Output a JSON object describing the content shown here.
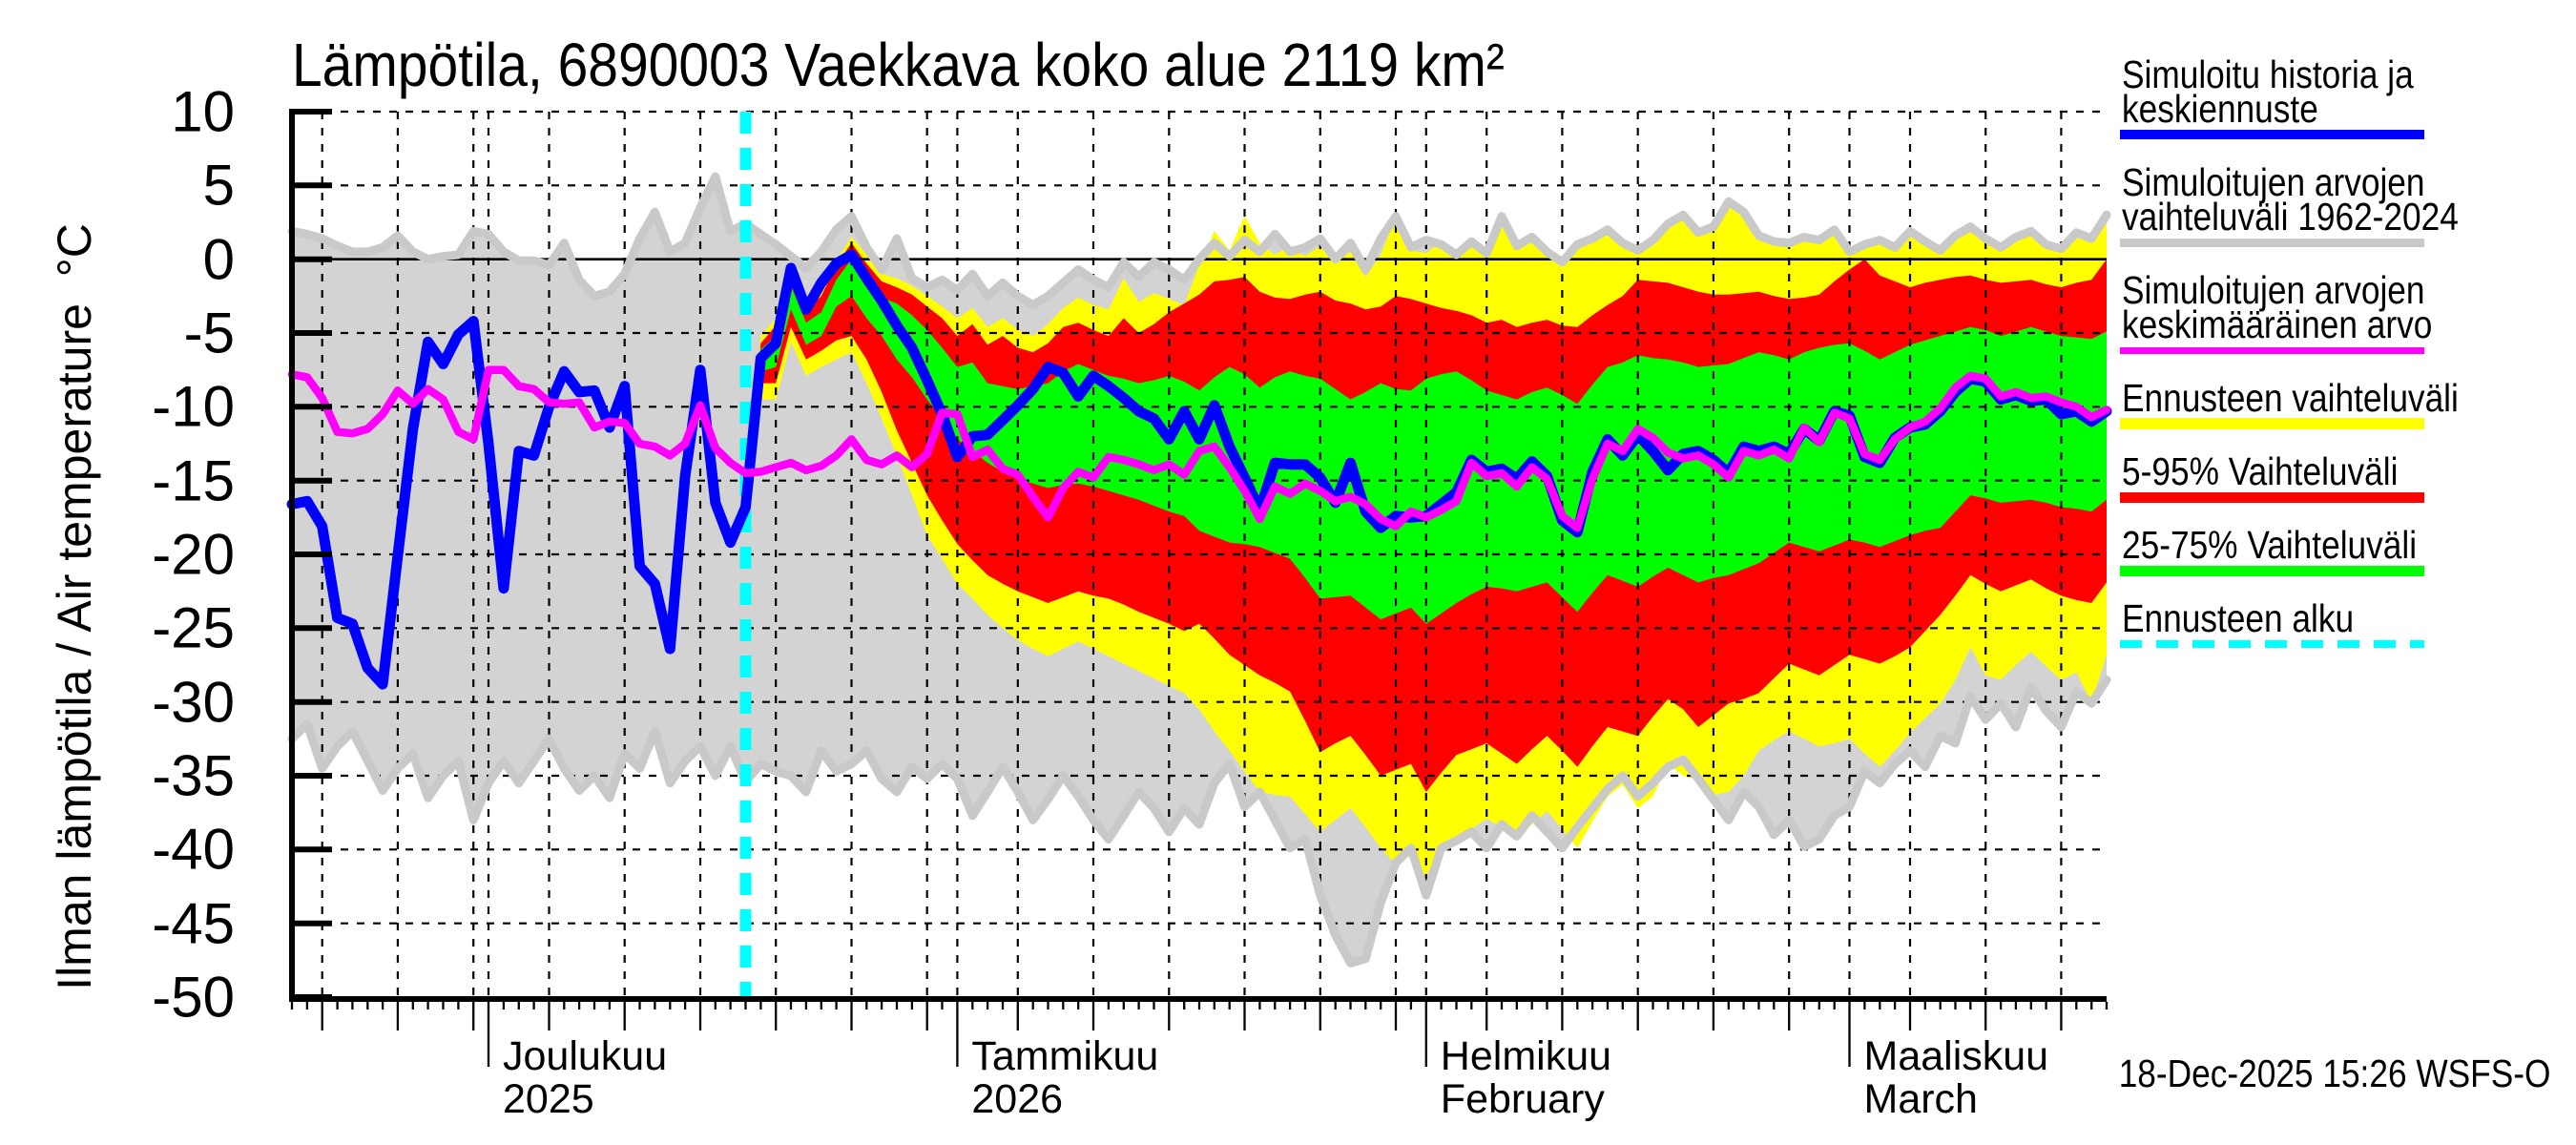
{
  "title": "Lämpötila, 6890003 Vaekkava koko alue 2119 km²",
  "stamp": "18-Dec-2025 15:26 WSFS-O",
  "y_axis": {
    "rotated_label": "Ilman lämpötila / Air temperature  °C",
    "unit": "°C",
    "ticks": [
      10,
      5,
      0,
      -5,
      -10,
      -15,
      -20,
      -25,
      -30,
      -35,
      -40,
      -45,
      -50
    ]
  },
  "x_axis": {
    "months": [
      {
        "name": "Joulukuu",
        "sub": "2025",
        "start_day": 13
      },
      {
        "name": "Tammikuu",
        "sub": "2026",
        "start_day": 44
      },
      {
        "name": "Helmikuu",
        "sub": "February",
        "start_day": 75
      },
      {
        "name": "Maaliskuu",
        "sub": "March",
        "start_day": 103
      }
    ]
  },
  "legend": {
    "items": [
      {
        "lines": [
          "Simuloitu historia ja",
          "keskiennuste"
        ],
        "style": "line",
        "color": "#0000ff",
        "thickness": 10
      },
      {
        "lines": [
          "Simuloitujen arvojen",
          "vaihteluväli 1962-2024"
        ],
        "style": "line",
        "color": "#c9c9c9",
        "thickness": 9
      },
      {
        "lines": [
          "Simuloitujen arvojen",
          "keskimääräinen arvo"
        ],
        "style": "line",
        "color": "#ff00ff",
        "thickness": 7
      },
      {
        "lines": [
          "Ennusteen vaihteluväli"
        ],
        "style": "band",
        "color": "#ffff00",
        "thickness": 12
      },
      {
        "lines": [
          "5-95% Vaihteluväli"
        ],
        "style": "band",
        "color": "#ff0000",
        "thickness": 11
      },
      {
        "lines": [
          "25-75% Vaihteluväli"
        ],
        "style": "band",
        "color": "#00ff00",
        "thickness": 11
      },
      {
        "lines": [
          "Ennusteen alku"
        ],
        "style": "dashed",
        "color": "#00ffff",
        "thickness": 8
      }
    ]
  },
  "colors": {
    "history_line": "#0000ff",
    "sim_range_fill": "#d3d3d3",
    "sim_range_line": "#c9c9c9",
    "sim_mean_line": "#ff00ff",
    "forecast_range": "#ffff00",
    "range_5_95": "#ff0000",
    "range_25_75": "#00ff00",
    "forecast_start": "#00ffff",
    "grid": "#000000"
  },
  "chart_data": {
    "type": "area",
    "description": "Air temperature simulated history and ensemble forecast, daily values",
    "x_start": "18-Nov-2025",
    "x_end": "18-Mar-2026",
    "days": 121,
    "forecast_start_day": 30,
    "month_layout": {
      "first_dom": 18,
      "month_lengths": [
        30,
        31,
        31,
        28,
        31
      ]
    },
    "ylim": [
      -50,
      10
    ],
    "series": {
      "sim_range_max": [
        1.9,
        1.7,
        1.4,
        0.9,
        0.5,
        0.5,
        0.8,
        1.6,
        0.5,
        0.0,
        0.2,
        0.3,
        1.9,
        1.7,
        0.5,
        -0.1,
        -0.1,
        -0.4,
        1.1,
        -1.4,
        -2.5,
        -2.2,
        -1.0,
        1.4,
        3.2,
        0.5,
        1.1,
        3.5,
        5.6,
        1.9,
        2.4,
        1.7,
        1.0,
        0.2,
        -0.6,
        0.5,
        2.0,
        2.9,
        0.8,
        -0.7,
        1.4,
        -1.3,
        -1.9,
        -1.4,
        -2.1,
        -1.0,
        -2.5,
        -1.6,
        -2.5,
        -3.1,
        -2.5,
        -1.6,
        -0.7,
        -1.4,
        -1.9,
        -0.2,
        -1.2,
        -0.2,
        -0.7,
        -1.4,
        0.0,
        1.1,
        0.2,
        1.3,
        0.5,
        1.7,
        0.5,
        0.8,
        1.4,
        0.0,
        1.1,
        -0.7,
        1.4,
        2.9,
        0.8,
        1.3,
        1.0,
        0.3,
        1.2,
        0.4,
        2.9,
        0.9,
        1.5,
        0.5,
        -0.2,
        1.0,
        1.4,
        2.0,
        1.1,
        0.6,
        1.3,
        2.4,
        3.0,
        1.8,
        2.2,
        3.9,
        3.2,
        1.6,
        1.2,
        1.1,
        1.5,
        1.3,
        2.0,
        0.5,
        1.0,
        1.3,
        0.8,
        1.9,
        1.2,
        0.6,
        1.6,
        2.2,
        1.4,
        0.8,
        1.5,
        1.9,
        1.0,
        0.7,
        1.8,
        1.4,
        3.0
      ],
      "sim_range_min": [
        -32.5,
        -31.5,
        -34.5,
        -33.0,
        -32.0,
        -34.0,
        -36.0,
        -34.5,
        -33.5,
        -36.5,
        -35.0,
        -34.0,
        -38.0,
        -35.5,
        -34.0,
        -35.5,
        -34.0,
        -32.5,
        -34.5,
        -36.0,
        -35.0,
        -36.5,
        -33.5,
        -34.5,
        -32.0,
        -35.5,
        -34.0,
        -33.0,
        -35.0,
        -33.0,
        -35.4,
        -34.2,
        -34.7,
        -35.0,
        -36.1,
        -33.3,
        -34.7,
        -34.2,
        -33.3,
        -35.2,
        -36.1,
        -34.4,
        -35.2,
        -34.2,
        -35.2,
        -37.7,
        -36.1,
        -34.4,
        -36.1,
        -38.0,
        -36.6,
        -35.0,
        -36.4,
        -38.0,
        -39.3,
        -37.7,
        -36.1,
        -37.2,
        -38.8,
        -37.2,
        -38.3,
        -35.5,
        -34.2,
        -37.1,
        -36.1,
        -38.0,
        -39.9,
        -39.3,
        -43.1,
        -45.8,
        -47.7,
        -47.4,
        -43.6,
        -40.9,
        -39.9,
        -43.1,
        -39.9,
        -39.4,
        -38.8,
        -39.9,
        -38.3,
        -39.1,
        -37.7,
        -38.8,
        -39.9,
        -38.5,
        -37.2,
        -35.9,
        -35.0,
        -36.4,
        -35.5,
        -34.4,
        -33.9,
        -35.2,
        -36.6,
        -38.0,
        -36.1,
        -37.1,
        -39.0,
        -38.0,
        -39.8,
        -39.3,
        -37.7,
        -37.1,
        -34.7,
        -35.5,
        -34.2,
        -33.3,
        -34.4,
        -32.3,
        -32.8,
        -29.6,
        -31.2,
        -30.1,
        -31.7,
        -29.0,
        -30.6,
        -31.7,
        -29.3,
        -30.1,
        -28.5
      ],
      "sim_mean": [
        -7.8,
        -8.0,
        -9.4,
        -11.7,
        -11.8,
        -11.5,
        -10.5,
        -8.9,
        -9.8,
        -8.8,
        -9.5,
        -11.7,
        -12.2,
        -7.5,
        -7.5,
        -8.6,
        -8.8,
        -9.7,
        -9.8,
        -9.7,
        -11.4,
        -11.0,
        -11.1,
        -12.5,
        -12.7,
        -13.3,
        -12.5,
        -9.9,
        -12.8,
        -13.8,
        -14.5,
        -14.4,
        -14.1,
        -13.8,
        -14.3,
        -14.0,
        -13.3,
        -12.2,
        -13.6,
        -13.9,
        -13.3,
        -14.1,
        -13.2,
        -10.4,
        -10.5,
        -13.4,
        -12.9,
        -14.2,
        -14.6,
        -16.1,
        -17.5,
        -15.5,
        -14.4,
        -14.8,
        -13.4,
        -13.6,
        -13.9,
        -14.3,
        -13.9,
        -14.6,
        -13.0,
        -12.7,
        -14.1,
        -15.7,
        -17.6,
        -15.4,
        -15.9,
        -15.2,
        -15.7,
        -16.4,
        -16.1,
        -16.6,
        -17.6,
        -18.1,
        -17.1,
        -17.5,
        -17.0,
        -16.4,
        -13.8,
        -14.7,
        -14.5,
        -15.4,
        -14.1,
        -14.9,
        -17.4,
        -18.2,
        -14.9,
        -12.5,
        -13.0,
        -11.5,
        -12.1,
        -13.1,
        -13.5,
        -13.3,
        -13.9,
        -14.8,
        -13.0,
        -13.3,
        -12.9,
        -13.5,
        -11.4,
        -12.4,
        -10.4,
        -10.8,
        -13.2,
        -13.6,
        -12.2,
        -11.4,
        -11.0,
        -10.1,
        -8.7,
        -7.9,
        -8.1,
        -9.3,
        -9.0,
        -9.4,
        -9.3,
        -9.7,
        -10.0,
        -10.7,
        -10.2
      ],
      "history_and_median": [
        -16.6,
        -16.4,
        -18.1,
        -24.3,
        -24.7,
        -27.7,
        -28.8,
        -20.1,
        -11.5,
        -5.6,
        -7.1,
        -5.1,
        -4.2,
        -12.5,
        -22.3,
        -13.0,
        -13.3,
        -10.0,
        -7.6,
        -9.0,
        -8.9,
        -11.4,
        -8.6,
        -20.8,
        -22.0,
        -26.4,
        -14.7,
        -7.5,
        -16.5,
        -19.2,
        -16.8,
        -6.7,
        -5.7,
        -0.6,
        -3.4,
        -1.6,
        -0.3,
        0.3,
        -1.3,
        -2.8,
        -4.5,
        -6.0,
        -8.2,
        -10.5,
        -13.4,
        -12.0,
        -11.9,
        -10.9,
        -9.9,
        -8.8,
        -7.3,
        -7.7,
        -9.3,
        -7.9,
        -8.6,
        -9.4,
        -10.3,
        -10.8,
        -12.2,
        -10.3,
        -12.2,
        -9.9,
        -12.7,
        -14.8,
        -17.0,
        -13.8,
        -13.9,
        -13.9,
        -14.8,
        -16.5,
        -13.8,
        -17.1,
        -18.2,
        -17.4,
        -17.5,
        -17.4,
        -16.6,
        -15.8,
        -13.6,
        -14.4,
        -14.2,
        -14.9,
        -13.7,
        -14.7,
        -17.7,
        -18.5,
        -14.4,
        -12.2,
        -13.3,
        -11.9,
        -13.0,
        -14.3,
        -13.2,
        -13.0,
        -13.6,
        -14.5,
        -12.7,
        -13.0,
        -12.7,
        -13.2,
        -11.5,
        -12.3,
        -10.3,
        -10.6,
        -13.4,
        -13.8,
        -12.1,
        -11.4,
        -11.2,
        -10.3,
        -9.0,
        -8.1,
        -8.3,
        -9.5,
        -9.2,
        -9.6,
        -9.5,
        -10.5,
        -10.3,
        -11.0,
        -10.3
      ],
      "forecast_max": [
        -16.8,
        -5.2,
        -4.0,
        -1.0,
        -3.1,
        -2.2,
        -0.1,
        1.5,
        0.3,
        -1.0,
        -1.3,
        -1.8,
        -2.5,
        -3.2,
        -4.0,
        -3.3,
        -4.6,
        -4.0,
        -4.8,
        -5.2,
        -4.4,
        -3.3,
        -2.6,
        -3.1,
        -3.4,
        -1.3,
        -2.9,
        -2.3,
        -2.7,
        -3.1,
        -0.4,
        1.9,
        0.6,
        2.9,
        1.1,
        0.3,
        0.9,
        0.2,
        0.9,
        -0.3,
        0.5,
        -1.2,
        0.3,
        2.9,
        0.6,
        0.4,
        1.2,
        0.3,
        1.0,
        0.2,
        2.9,
        0.8,
        1.5,
        0.4,
        0.0,
        0.9,
        1.3,
        2.0,
        1.0,
        0.5,
        1.2,
        2.4,
        3.0,
        1.8,
        2.2,
        3.5,
        3.2,
        1.6,
        1.2,
        1.1,
        1.5,
        1.3,
        2.0,
        0.5,
        1.0,
        1.3,
        0.8,
        1.9,
        1.2,
        0.6,
        1.6,
        2.2,
        1.4,
        0.8,
        1.5,
        1.9,
        1.0,
        0.7,
        1.8,
        1.4,
        3.0
      ],
      "forecast_min": [
        -16.8,
        -9.5,
        -9.5,
        -5.6,
        -7.9,
        -7.3,
        -6.8,
        -6.3,
        -8.4,
        -10.8,
        -13.3,
        -16.0,
        -18.7,
        -20.3,
        -22.0,
        -23.0,
        -24.1,
        -25.0,
        -25.8,
        -26.4,
        -26.9,
        -26.4,
        -25.9,
        -26.4,
        -26.9,
        -27.4,
        -27.9,
        -28.4,
        -28.9,
        -29.4,
        -30.5,
        -32.0,
        -33.3,
        -34.7,
        -36.1,
        -36.3,
        -36.4,
        -37.6,
        -38.8,
        -38.0,
        -37.2,
        -38.5,
        -39.9,
        -41.0,
        -40.4,
        -41.8,
        -39.8,
        -39.3,
        -38.6,
        -37.9,
        -38.5,
        -39.2,
        -38.3,
        -37.4,
        -38.6,
        -39.9,
        -38.1,
        -36.4,
        -35.6,
        -37.2,
        -36.4,
        -34.2,
        -35.0,
        -35.3,
        -36.3,
        -36.1,
        -35.0,
        -33.3,
        -32.6,
        -32.0,
        -32.5,
        -33.0,
        -32.8,
        -32.5,
        -33.5,
        -34.4,
        -33.3,
        -32.1,
        -31.1,
        -30.1,
        -28.5,
        -26.3,
        -28.2,
        -28.5,
        -27.5,
        -26.6,
        -27.6,
        -28.5,
        -28.0,
        -30.0,
        -26.8
      ],
      "p95": [
        -16.8,
        -5.7,
        -4.5,
        -1.3,
        -3.5,
        -2.5,
        -0.4,
        1.1,
        -0.3,
        -1.5,
        -1.9,
        -2.4,
        -3.2,
        -4.0,
        -5.2,
        -4.4,
        -5.8,
        -5.2,
        -6.0,
        -6.3,
        -5.7,
        -4.6,
        -4.3,
        -4.8,
        -5.2,
        -4.0,
        -5.0,
        -4.4,
        -3.6,
        -3.0,
        -2.4,
        -1.5,
        -1.4,
        -1.2,
        -2.2,
        -2.6,
        -2.7,
        -2.4,
        -2.2,
        -2.8,
        -3.0,
        -3.4,
        -3.2,
        -2.5,
        -2.7,
        -3.0,
        -3.3,
        -3.5,
        -3.8,
        -4.3,
        -4.1,
        -4.6,
        -4.3,
        -4.1,
        -4.5,
        -4.6,
        -3.8,
        -3.1,
        -2.5,
        -1.4,
        -1.5,
        -1.6,
        -1.9,
        -2.2,
        -2.4,
        -2.4,
        -2.3,
        -2.2,
        -2.5,
        -2.7,
        -2.6,
        -2.4,
        -1.5,
        -0.7,
        0.0,
        -1.1,
        -1.5,
        -1.9,
        -1.6,
        -1.4,
        -1.2,
        -1.1,
        -1.4,
        -1.6,
        -1.5,
        -1.4,
        -1.7,
        -1.9,
        -1.6,
        -1.4,
        0.0
      ],
      "p5": [
        -16.8,
        -8.4,
        -8.4,
        -4.6,
        -6.8,
        -6.2,
        -5.5,
        -5.2,
        -6.8,
        -9.0,
        -11.6,
        -13.8,
        -16.0,
        -17.7,
        -19.3,
        -20.4,
        -21.4,
        -22.0,
        -22.5,
        -22.9,
        -23.3,
        -22.9,
        -22.5,
        -22.8,
        -23.0,
        -23.4,
        -23.9,
        -24.3,
        -24.7,
        -25.2,
        -24.7,
        -25.7,
        -26.8,
        -27.5,
        -28.2,
        -28.7,
        -29.3,
        -31.3,
        -33.4,
        -32.8,
        -32.3,
        -33.6,
        -35.0,
        -34.6,
        -34.2,
        -36.1,
        -34.8,
        -33.6,
        -33.2,
        -32.8,
        -33.5,
        -34.2,
        -33.2,
        -32.3,
        -33.3,
        -34.4,
        -33.0,
        -31.7,
        -32.0,
        -32.3,
        -31.0,
        -29.8,
        -30.5,
        -31.7,
        -30.9,
        -30.1,
        -29.8,
        -29.4,
        -28.4,
        -27.4,
        -27.8,
        -28.2,
        -27.5,
        -26.8,
        -27.1,
        -27.4,
        -26.9,
        -26.3,
        -25.2,
        -24.1,
        -22.8,
        -21.4,
        -22.0,
        -22.5,
        -22.1,
        -21.7,
        -22.3,
        -22.8,
        -23.1,
        -23.3,
        -21.9
      ],
      "p75": [
        -16.8,
        -6.1,
        -5.2,
        -1.8,
        -4.3,
        -3.6,
        -1.4,
        0.0,
        -1.5,
        -2.6,
        -3.0,
        -3.8,
        -4.8,
        -6.0,
        -7.3,
        -7.0,
        -8.4,
        -8.6,
        -8.8,
        -8.6,
        -8.4,
        -7.6,
        -7.1,
        -7.5,
        -7.9,
        -8.1,
        -8.4,
        -8.2,
        -7.9,
        -8.3,
        -8.9,
        -8.0,
        -7.3,
        -7.8,
        -8.7,
        -8.0,
        -7.6,
        -7.9,
        -8.1,
        -8.8,
        -9.5,
        -9.0,
        -8.4,
        -8.8,
        -8.9,
        -8.1,
        -7.8,
        -7.6,
        -8.2,
        -8.9,
        -9.2,
        -9.5,
        -9.0,
        -8.7,
        -9.2,
        -9.8,
        -8.5,
        -7.3,
        -7.0,
        -6.5,
        -6.7,
        -6.8,
        -7.0,
        -7.3,
        -7.2,
        -7.1,
        -6.7,
        -6.3,
        -6.5,
        -6.8,
        -6.3,
        -6.0,
        -5.8,
        -5.7,
        -6.2,
        -6.8,
        -6.3,
        -5.8,
        -5.5,
        -5.2,
        -4.9,
        -4.6,
        -4.8,
        -5.2,
        -4.9,
        -4.6,
        -4.9,
        -5.2,
        -5.3,
        -5.4,
        -4.9
      ],
      "p25": [
        -16.8,
        -7.6,
        -7.3,
        -3.4,
        -5.8,
        -5.2,
        -3.2,
        -2.5,
        -4.0,
        -5.2,
        -6.8,
        -8.0,
        -9.5,
        -10.8,
        -12.2,
        -13.0,
        -13.8,
        -14.4,
        -14.9,
        -15.2,
        -15.5,
        -15.3,
        -15.2,
        -15.4,
        -15.7,
        -16.0,
        -16.3,
        -16.7,
        -17.1,
        -17.4,
        -18.4,
        -18.8,
        -19.2,
        -19.3,
        -19.5,
        -19.9,
        -20.3,
        -21.6,
        -23.0,
        -22.9,
        -22.8,
        -23.6,
        -24.4,
        -24.0,
        -23.6,
        -24.7,
        -24.0,
        -23.3,
        -22.7,
        -22.2,
        -22.3,
        -22.5,
        -22.2,
        -21.9,
        -22.9,
        -23.9,
        -22.6,
        -21.4,
        -21.8,
        -22.2,
        -21.5,
        -20.9,
        -21.4,
        -21.9,
        -21.6,
        -21.4,
        -21.0,
        -20.6,
        -19.9,
        -19.2,
        -19.5,
        -19.8,
        -19.4,
        -19.0,
        -19.2,
        -19.5,
        -19.1,
        -18.7,
        -18.4,
        -18.2,
        -17.1,
        -16.0,
        -16.2,
        -16.5,
        -16.4,
        -16.3,
        -16.5,
        -16.8,
        -16.9,
        -17.1,
        -16.3
      ]
    }
  }
}
